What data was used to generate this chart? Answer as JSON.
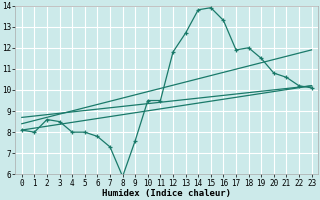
{
  "xlabel": "Humidex (Indice chaleur)",
  "ylabel": "",
  "bg_color": "#cceaea",
  "grid_color": "#ffffff",
  "line_color": "#1a7a6a",
  "xlim": [
    -0.5,
    23.5
  ],
  "ylim": [
    6,
    14
  ],
  "xticks": [
    0,
    1,
    2,
    3,
    4,
    5,
    6,
    7,
    8,
    9,
    10,
    11,
    12,
    13,
    14,
    15,
    16,
    17,
    18,
    19,
    20,
    21,
    22,
    23
  ],
  "yticks": [
    6,
    7,
    8,
    9,
    10,
    11,
    12,
    13,
    14
  ],
  "data_line": {
    "x": [
      0,
      1,
      2,
      3,
      4,
      5,
      6,
      7,
      8,
      9,
      10,
      11,
      12,
      13,
      14,
      15,
      16,
      17,
      18,
      19,
      20,
      21,
      22,
      23
    ],
    "y": [
      8.1,
      8.0,
      8.6,
      8.5,
      8.0,
      8.0,
      7.8,
      7.3,
      5.9,
      7.6,
      9.5,
      9.5,
      11.8,
      12.7,
      13.8,
      13.9,
      13.3,
      11.9,
      12.0,
      11.5,
      10.8,
      10.6,
      10.2,
      10.1
    ]
  },
  "reg_lines": [
    {
      "x": [
        0,
        23
      ],
      "y": [
        8.1,
        10.2
      ]
    },
    {
      "x": [
        0,
        23
      ],
      "y": [
        8.4,
        11.9
      ]
    },
    {
      "x": [
        0,
        23
      ],
      "y": [
        8.7,
        10.2
      ]
    }
  ],
  "xlabel_fontsize": 6.5,
  "tick_fontsize": 5.5
}
